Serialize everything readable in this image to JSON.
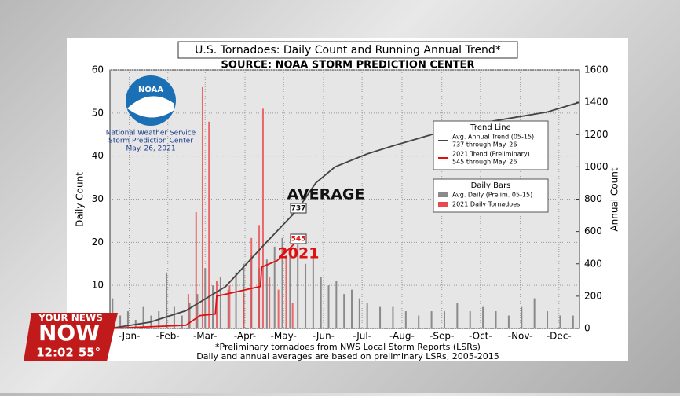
{
  "chart_data": {
    "type": "combo",
    "title": "U.S. Tornadoes: Daily Count and Running Annual Trend*",
    "subtitle": "SOURCE: NOAA STORM PREDICTION CENTER",
    "y_label": "Daily Count",
    "y2_label": "Annual Count",
    "xlim": [
      0,
      365
    ],
    "xticks": [
      {
        "value": 15,
        "label": "-Jan-"
      },
      {
        "value": 45,
        "label": "-Feb-"
      },
      {
        "value": 74,
        "label": "-Mar-"
      },
      {
        "value": 105,
        "label": "-Apr-"
      },
      {
        "value": 135,
        "label": "-May-"
      },
      {
        "value": 166,
        "label": "-Jun-"
      },
      {
        "value": 196,
        "label": "-Jul-"
      },
      {
        "value": 227,
        "label": "-Aug-"
      },
      {
        "value": 258,
        "label": "-Sep-"
      },
      {
        "value": 288,
        "label": "-Oct-"
      },
      {
        "value": 319,
        "label": "-Nov-"
      },
      {
        "value": 349,
        "label": "-Dec-"
      }
    ],
    "ylim": [
      0,
      60
    ],
    "yticks": [
      0,
      10,
      20,
      30,
      40,
      50,
      60
    ],
    "y2lim": [
      0,
      1600
    ],
    "y2ticks": [
      0,
      200,
      400,
      600,
      800,
      1000,
      1200,
      1400,
      1600
    ],
    "grid": true,
    "legend_groups": [
      "Trend Line",
      "Daily Bars"
    ],
    "series": [
      {
        "name": "Avg. Daily (Prelim. 05-15)",
        "kind": "bar",
        "color": "#8a8a8a",
        "x": [
          2,
          8,
          14,
          20,
          26,
          32,
          38,
          44,
          50,
          56,
          62,
          68,
          74,
          80,
          86,
          92,
          98,
          104,
          110,
          116,
          122,
          128,
          134,
          140,
          146,
          152,
          158,
          164,
          170,
          176,
          182,
          188,
          194,
          200,
          210,
          220,
          230,
          240,
          250,
          260,
          270,
          280,
          290,
          300,
          310,
          320,
          330,
          340,
          350,
          360
        ],
        "values": [
          7,
          3,
          4,
          2,
          5,
          3,
          4,
          13,
          5,
          3,
          6,
          8,
          14,
          10,
          12,
          9,
          13,
          15,
          17,
          14,
          16,
          19,
          21,
          18,
          20,
          15,
          17,
          12,
          10,
          11,
          8,
          9,
          7,
          6,
          5,
          5,
          4,
          3,
          4,
          4,
          6,
          4,
          5,
          4,
          3,
          5,
          7,
          4,
          3,
          3
        ]
      },
      {
        "name": "2021 Daily Tornadoes",
        "kind": "bar",
        "color": "#e8484e",
        "x": [
          61,
          67,
          72,
          77,
          83,
          93,
          104,
          110,
          116,
          119,
          124,
          131,
          137,
          142
        ],
        "values": [
          8,
          27,
          56,
          48,
          11,
          10,
          8,
          21,
          24,
          51,
          12,
          9,
          17,
          6
        ]
      },
      {
        "name": "Avg. Annual Trend (05-15)",
        "note": "737 through May. 26",
        "kind": "line",
        "axis": "y2",
        "color": "#444444",
        "x": [
          0,
          31,
          59,
          90,
          120,
          146,
          160,
          175,
          200,
          220,
          250,
          280,
          310,
          340,
          365
        ],
        "values": [
          0,
          39,
          110,
          260,
          520,
          737,
          900,
          1000,
          1080,
          1130,
          1200,
          1260,
          1300,
          1340,
          1400
        ]
      },
      {
        "name": "2021 Trend (Preliminary)",
        "note": "545 through May. 26",
        "kind": "line",
        "axis": "y2",
        "color": "#e01010",
        "x": [
          0,
          30,
          59,
          70,
          82,
          83,
          100,
          117,
          118,
          130,
          146
        ],
        "values": [
          0,
          10,
          20,
          80,
          90,
          200,
          230,
          260,
          380,
          420,
          545
        ]
      }
    ],
    "annotations": [
      {
        "text": "AVERAGE"
      },
      {
        "text": "737"
      },
      {
        "text": "2021"
      },
      {
        "text": "545"
      }
    ],
    "logo": {
      "name": "NOAA",
      "lines": [
        "National Weather Service",
        "Storm Prediction Center",
        "May. 26, 2021"
      ]
    },
    "footnotes": [
      "*Preliminary tornadoes from NWS Local Storm Reports (LSRs)",
      "Daily and annual averages are based on preliminary LSRs, 2005-2015"
    ]
  },
  "overlay": {
    "brand_top": "YOUR NEWS",
    "brand": "NOW",
    "time": "12:02",
    "temperature": "55°"
  }
}
